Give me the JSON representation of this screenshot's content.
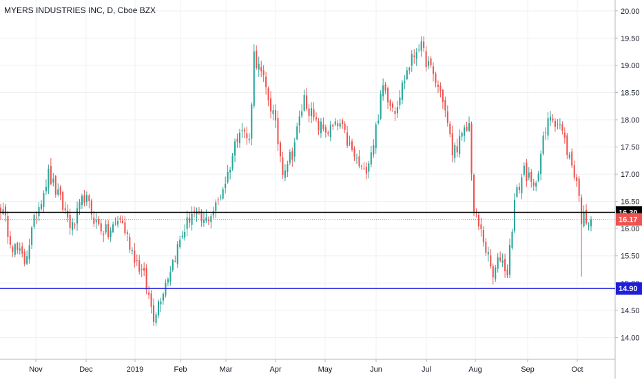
{
  "chart_data": {
    "type": "candlestick",
    "title": "MYERS INDUSTRIES INC, D, Cboe BZX",
    "x_labels": [
      "Nov",
      "Dec",
      "2019",
      "Feb",
      "Mar",
      "Apr",
      "May",
      "Jun",
      "Jul",
      "Aug",
      "Sep",
      "Oct"
    ],
    "y_ticks": [
      "14.00",
      "14.50",
      "15.00",
      "15.50",
      "16.00",
      "16.50",
      "17.00",
      "17.50",
      "18.00",
      "18.50",
      "19.00",
      "19.50",
      "20.00"
    ],
    "ylim": [
      13.6,
      20.2
    ],
    "grid": true,
    "colors": {
      "up": "#26a69a",
      "down": "#ef5350",
      "grid": "#eef0f3",
      "line_black": "#000000",
      "line_blue": "#1e1ed6",
      "line_red": "#ef5350"
    },
    "horizontal_lines": [
      {
        "value": 16.3,
        "label": "16.30",
        "style": "solid",
        "color": "#000000"
      },
      {
        "value": 16.17,
        "label": "16.17",
        "style": "dotted",
        "color": "#ef5350"
      },
      {
        "value": 14.9,
        "label": "14.90",
        "style": "solid",
        "color": "#1e1ed6"
      }
    ],
    "close_path": [
      [
        0,
        16.4
      ],
      [
        5,
        15.7
      ],
      [
        10,
        15.4
      ],
      [
        15,
        16.3
      ],
      [
        20,
        17.0
      ],
      [
        25,
        16.5
      ],
      [
        30,
        16.0
      ],
      [
        35,
        16.6
      ],
      [
        40,
        16.1
      ],
      [
        45,
        15.9
      ],
      [
        50,
        16.2
      ],
      [
        55,
        15.6
      ],
      [
        60,
        15.1
      ],
      [
        64,
        14.4
      ],
      [
        68,
        14.9
      ],
      [
        72,
        15.4
      ],
      [
        76,
        15.9
      ],
      [
        80,
        16.3
      ],
      [
        85,
        16.1
      ],
      [
        90,
        16.4
      ],
      [
        95,
        17.0
      ],
      [
        100,
        17.9
      ],
      [
        104,
        17.6
      ],
      [
        106,
        19.2
      ],
      [
        110,
        18.7
      ],
      [
        114,
        18.1
      ],
      [
        118,
        17.1
      ],
      [
        122,
        17.4
      ],
      [
        127,
        18.4
      ],
      [
        132,
        17.9
      ],
      [
        137,
        17.8
      ],
      [
        142,
        17.9
      ],
      [
        147,
        17.4
      ],
      [
        152,
        17.0
      ],
      [
        156,
        17.6
      ],
      [
        160,
        18.6
      ],
      [
        165,
        18.2
      ],
      [
        170,
        18.9
      ],
      [
        175,
        19.4
      ],
      [
        180,
        18.9
      ],
      [
        185,
        18.4
      ],
      [
        189,
        17.4
      ],
      [
        192,
        17.6
      ],
      [
        196,
        17.9
      ],
      [
        198,
        16.3
      ],
      [
        202,
        15.8
      ],
      [
        206,
        15.1
      ],
      [
        209,
        15.5
      ],
      [
        212,
        15.2
      ],
      [
        215,
        16.5
      ],
      [
        219,
        17.1
      ],
      [
        223,
        16.7
      ],
      [
        227,
        17.6
      ],
      [
        230,
        18.1
      ],
      [
        234,
        17.9
      ],
      [
        238,
        17.3
      ],
      [
        241,
        16.9
      ],
      [
        243,
        16.2
      ],
      [
        246,
        16.17
      ]
    ]
  }
}
